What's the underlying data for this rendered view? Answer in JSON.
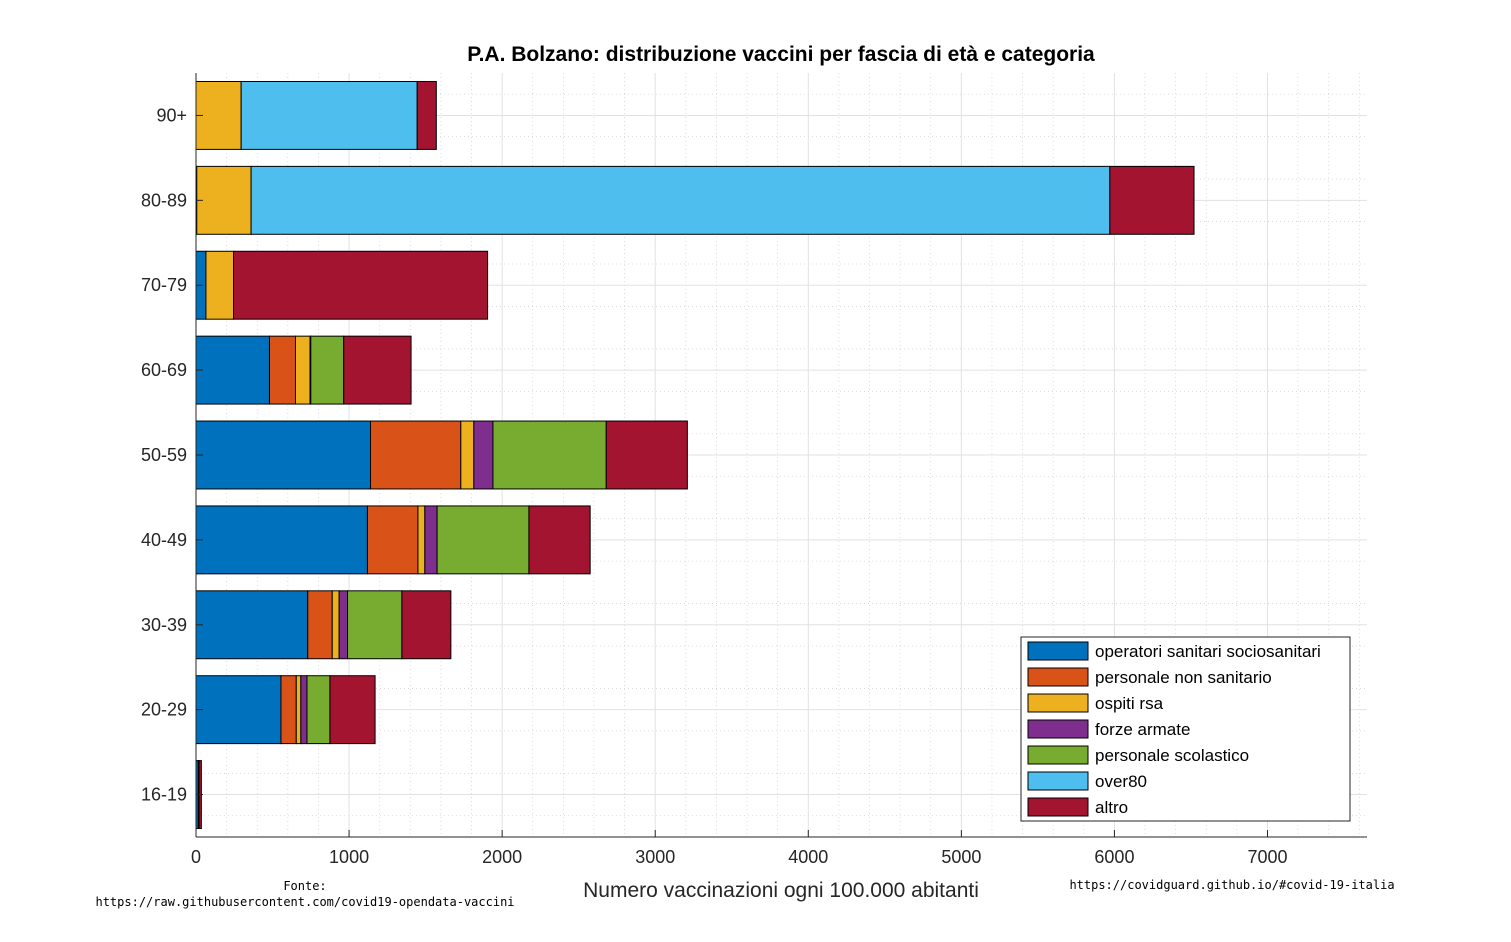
{
  "footer": {
    "source_label": "Fonte:",
    "source_url": "https://raw.githubusercontent.com/covid19-opendata-vaccini",
    "site": "https://covidguard.github.io/#covid-19-italia"
  },
  "chart_data": {
    "type": "bar",
    "orientation": "horizontal",
    "stacked": true,
    "title": "P.A. Bolzano: distribuzione vaccini per fascia di età e categoria",
    "xlabel": "Numero vaccinazioni ogni 100.000 abitanti",
    "ylabel": "",
    "xlim": [
      0,
      7650
    ],
    "xticks": [
      0,
      1000,
      2000,
      3000,
      4000,
      5000,
      6000,
      7000
    ],
    "grid": true,
    "minor_grid": true,
    "legend_position": "bottom-right",
    "categories": [
      "90+",
      "80-89",
      "70-79",
      "60-69",
      "50-59",
      "40-49",
      "30-39",
      "20-29",
      "16-19"
    ],
    "series": [
      {
        "name": "operatori sanitari sociosanitari",
        "color": "#0072BD",
        "values": [
          0,
          5,
          65,
          480,
          1140,
          1120,
          730,
          555,
          15
        ]
      },
      {
        "name": "personale non sanitario",
        "color": "#D95319",
        "values": [
          0,
          0,
          0,
          170,
          590,
          330,
          160,
          100,
          5
        ]
      },
      {
        "name": "ospiti rsa",
        "color": "#EDB120",
        "values": [
          295,
          355,
          180,
          95,
          85,
          45,
          45,
          30,
          0
        ]
      },
      {
        "name": "forze armate",
        "color": "#7E2F8E",
        "values": [
          0,
          0,
          0,
          5,
          125,
          80,
          55,
          40,
          0
        ]
      },
      {
        "name": "personale scolastico",
        "color": "#77AC30",
        "values": [
          0,
          0,
          0,
          215,
          740,
          600,
          355,
          150,
          0
        ]
      },
      {
        "name": "over80",
        "color": "#4DBEEE",
        "values": [
          1150,
          5610,
          0,
          0,
          0,
          0,
          0,
          0,
          0
        ]
      },
      {
        "name": "altro",
        "color": "#A2142F",
        "values": [
          125,
          550,
          1660,
          440,
          530,
          400,
          320,
          295,
          15
        ]
      }
    ]
  }
}
